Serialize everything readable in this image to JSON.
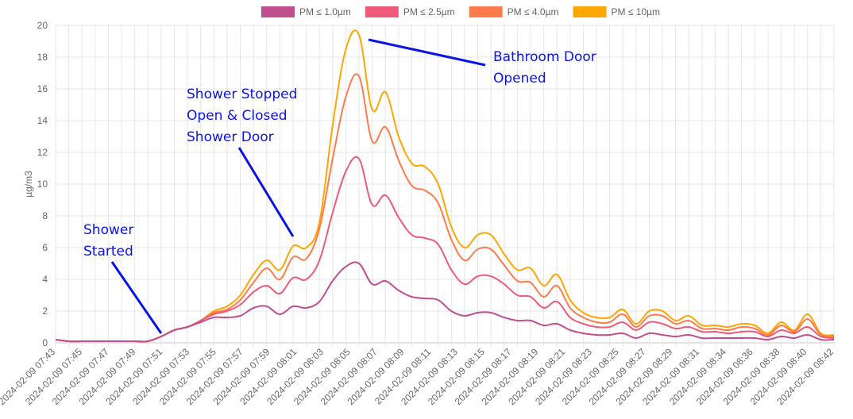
{
  "chart_data": {
    "type": "line",
    "ylabel": "µg/m3",
    "ylim": [
      0,
      20
    ],
    "yticks": [
      0,
      2,
      4,
      6,
      8,
      10,
      12,
      14,
      16,
      18,
      20
    ],
    "x": [
      "07:43",
      "07:44",
      "07:45",
      "07:46",
      "07:47",
      "07:48",
      "07:49",
      "07:50",
      "07:51",
      "07:52",
      "07:53",
      "07:54",
      "07:55",
      "07:56",
      "07:57",
      "07:58",
      "07:59",
      "08:00",
      "08:01",
      "08:02",
      "08:03",
      "08:04",
      "08:05",
      "08:06",
      "08:07",
      "08:08",
      "08:09",
      "08:10",
      "08:11",
      "08:12",
      "08:13",
      "08:14",
      "08:15",
      "08:16",
      "08:17",
      "08:18",
      "08:19",
      "08:20",
      "08:21",
      "08:22",
      "08:23",
      "08:24",
      "08:25",
      "08:26",
      "08:27",
      "08:28",
      "08:29",
      "08:30",
      "08:31",
      "08:32",
      "08:33",
      "08:34",
      "08:35",
      "08:36",
      "08:37",
      "08:38",
      "08:39",
      "08:40",
      "08:41",
      "08:42"
    ],
    "xticks": [
      "2024-02-09 07:43",
      "2024-02-09 07:45",
      "2024-02-09 07:47",
      "2024-02-09 07:49",
      "2024-02-09 07:51",
      "2024-02-09 07:53",
      "2024-02-09 07:55",
      "2024-02-09 07:57",
      "2024-02-09 07:59",
      "2024-02-09 08:01",
      "2024-02-09 08:03",
      "2024-02-09 08:05",
      "2024-02-09 08:07",
      "2024-02-09 08:09",
      "2024-02-09 08:11",
      "2024-02-09 08:13",
      "2024-02-09 08:15",
      "2024-02-09 08:17",
      "2024-02-09 08:19",
      "2024-02-09 08:21",
      "2024-02-09 08:23",
      "2024-02-09 08:25",
      "2024-02-09 08:27",
      "2024-02-09 08:29",
      "2024-02-09 08:31",
      "2024-02-09 08:34",
      "2024-02-09 08:36",
      "2024-02-09 08:38",
      "2024-02-09 08:40",
      "2024-02-09 08:42"
    ],
    "grid": true,
    "legend_position": "top-center",
    "series": [
      {
        "name": "PM ≤ 1.0µm",
        "color": "#bf4f8f",
        "values": [
          0.2,
          0.1,
          0.1,
          0.1,
          0.1,
          0.1,
          0.1,
          0.1,
          0.4,
          0.8,
          1.0,
          1.3,
          1.6,
          1.6,
          1.7,
          2.2,
          2.3,
          1.8,
          2.3,
          2.2,
          2.6,
          3.9,
          4.8,
          5.0,
          3.7,
          3.9,
          3.3,
          2.9,
          2.8,
          2.7,
          2.0,
          1.7,
          1.9,
          1.9,
          1.6,
          1.4,
          1.4,
          1.1,
          1.2,
          0.8,
          0.6,
          0.5,
          0.5,
          0.6,
          0.3,
          0.6,
          0.5,
          0.4,
          0.5,
          0.3,
          0.3,
          0.3,
          0.3,
          0.3,
          0.2,
          0.4,
          0.3,
          0.5,
          0.2,
          0.2
        ]
      },
      {
        "name": "PM ≤ 2.5µm",
        "color": "#ee5a78",
        "values": [
          0.2,
          0.1,
          0.1,
          0.1,
          0.1,
          0.1,
          0.1,
          0.1,
          0.4,
          0.8,
          1.0,
          1.4,
          1.8,
          2.0,
          2.4,
          3.2,
          3.6,
          3.1,
          4.1,
          4.0,
          5.2,
          8.2,
          10.8,
          11.6,
          8.7,
          9.3,
          7.9,
          6.8,
          6.6,
          6.2,
          4.6,
          3.7,
          4.2,
          4.2,
          3.7,
          3.0,
          2.9,
          2.2,
          2.6,
          1.6,
          1.2,
          1.0,
          1.0,
          1.3,
          0.8,
          1.3,
          1.2,
          0.9,
          1.0,
          0.7,
          0.7,
          0.6,
          0.7,
          0.7,
          0.4,
          0.8,
          0.6,
          1.0,
          0.4,
          0.3
        ]
      },
      {
        "name": "PM ≤ 4.0µm",
        "color": "#ff7a4d",
        "values": [
          0.2,
          0.1,
          0.1,
          0.1,
          0.1,
          0.1,
          0.1,
          0.1,
          0.4,
          0.8,
          1.0,
          1.4,
          1.9,
          2.1,
          2.7,
          3.8,
          4.7,
          4.0,
          5.4,
          5.3,
          7.2,
          11.6,
          15.5,
          16.8,
          12.7,
          13.6,
          11.5,
          9.9,
          9.6,
          8.8,
          6.5,
          5.2,
          5.9,
          5.9,
          4.9,
          3.9,
          3.8,
          2.9,
          3.6,
          2.2,
          1.6,
          1.3,
          1.3,
          1.8,
          1.0,
          1.7,
          1.7,
          1.2,
          1.4,
          0.9,
          0.9,
          0.8,
          1.0,
          0.9,
          0.5,
          1.1,
          0.7,
          1.5,
          0.5,
          0.4
        ]
      },
      {
        "name": "PM ≤ 10µm",
        "color": "#ffa500",
        "values": [
          0.2,
          0.1,
          0.1,
          0.1,
          0.1,
          0.1,
          0.1,
          0.1,
          0.4,
          0.8,
          1.0,
          1.4,
          2.0,
          2.3,
          3.0,
          4.3,
          5.2,
          4.6,
          6.1,
          6.0,
          7.6,
          13.7,
          18.5,
          19.4,
          14.7,
          15.8,
          13.0,
          11.3,
          11.1,
          10.0,
          7.3,
          6.0,
          6.8,
          6.8,
          5.6,
          4.6,
          4.7,
          3.6,
          4.3,
          2.7,
          1.9,
          1.6,
          1.6,
          2.1,
          1.2,
          2.0,
          2.0,
          1.4,
          1.7,
          1.1,
          1.1,
          1.0,
          1.2,
          1.1,
          0.6,
          1.3,
          0.8,
          1.8,
          0.6,
          0.5
        ]
      }
    ],
    "annotations": [
      {
        "id": "ann-shower-started",
        "lines": [
          "Shower",
          "Started"
        ],
        "arrow_x": "07:51",
        "arrow_y": 0.6
      },
      {
        "id": "ann-shower-stopped",
        "lines": [
          "Shower Stopped",
          "Open & Closed",
          "Shower Door"
        ],
        "arrow_x": "08:01",
        "arrow_y": 6.7
      },
      {
        "id": "ann-bathroom-door",
        "lines": [
          "Bathroom Door",
          "Opened"
        ],
        "arrow_x": "08:06",
        "arrow_y": 19.2
      }
    ]
  }
}
